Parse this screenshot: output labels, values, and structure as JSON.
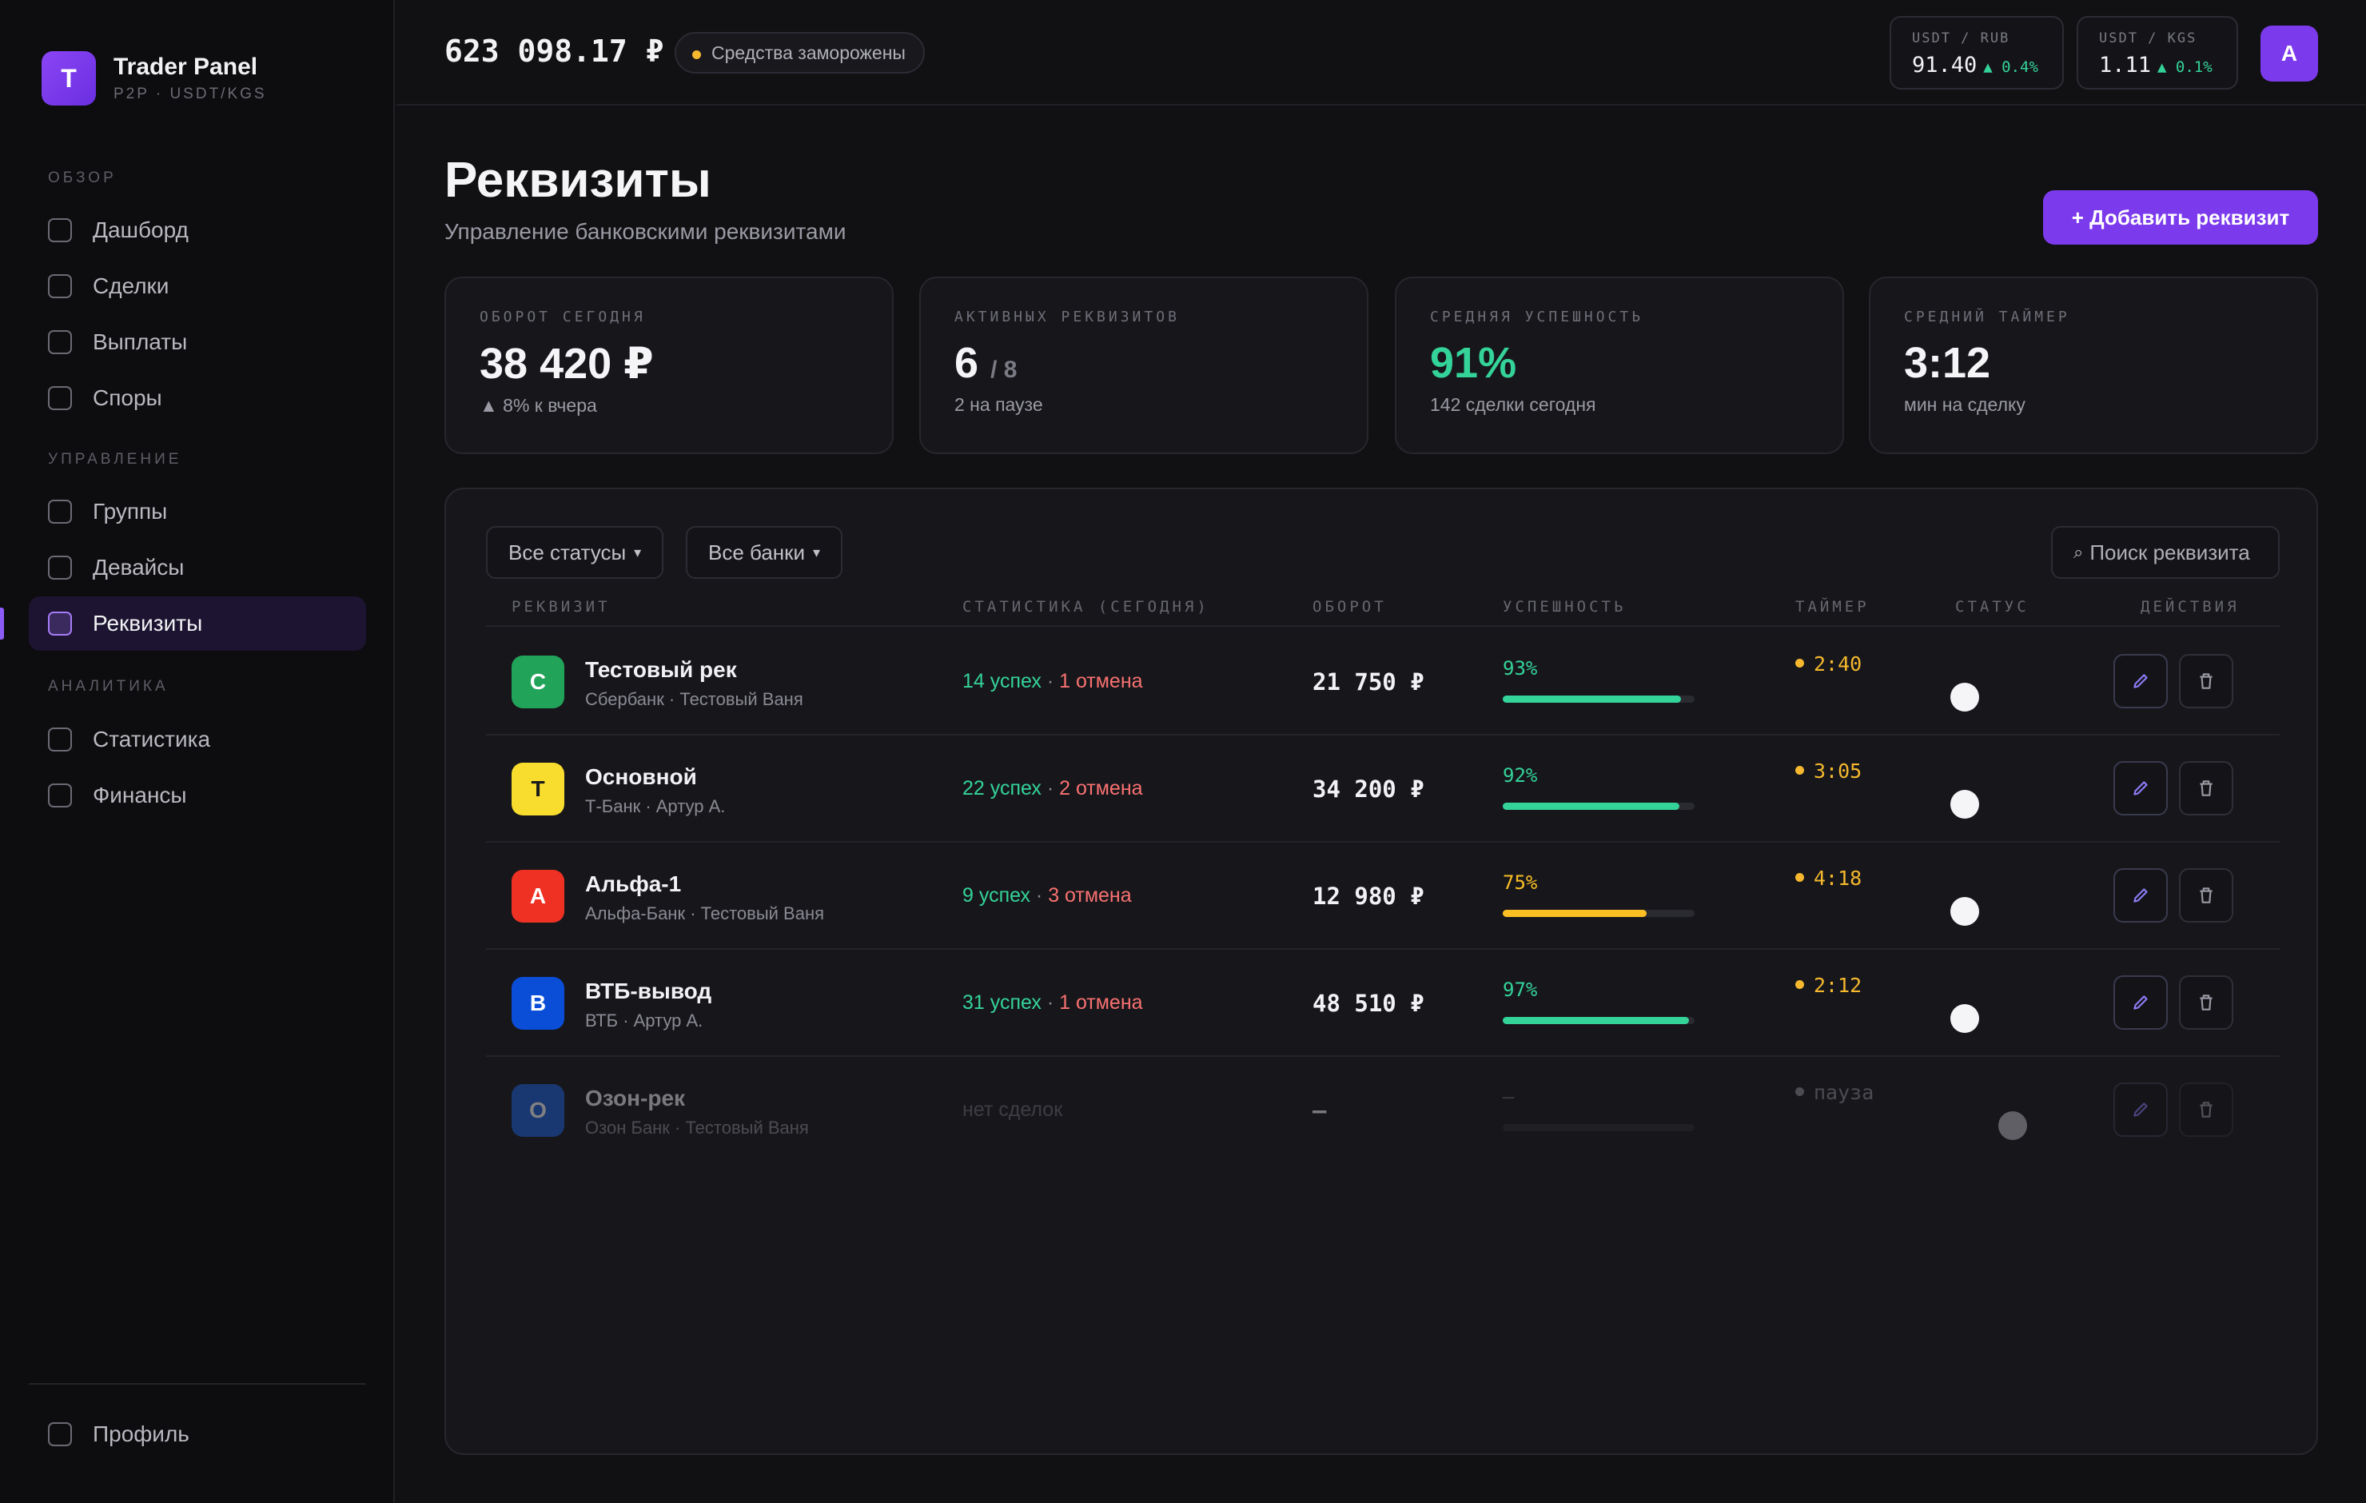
{
  "brand": {
    "logo_letter": "T",
    "title": "Trader Panel",
    "subtitle": "P2P · USDT/KGS"
  },
  "nav": {
    "sections": [
      "ОБЗОР",
      "УПРАВЛЕНИЕ",
      "АНАЛИТИКА"
    ],
    "items": [
      "Дашборд",
      "Сделки",
      "Выплаты",
      "Споры",
      "Группы",
      "Девайсы",
      "Реквизиты",
      "Статистика",
      "Финансы"
    ],
    "active": "Реквизиты",
    "profile": "Профиль"
  },
  "topbar": {
    "balance": "623 098.17 ₽",
    "frozen_label": "Средства заморожены",
    "rates": [
      {
        "pair": "USDT / RUB",
        "value": "91.40",
        "change": "▲ 0.4%"
      },
      {
        "pair": "USDT / KGS",
        "value": "1.11",
        "change": "▲ 0.1%"
      }
    ],
    "avatar_letter": "A"
  },
  "header": {
    "title": "Реквизиты",
    "subtitle": "Управление банковскими реквизитами",
    "add_button": "+ Добавить реквизит"
  },
  "stats": [
    {
      "label": "ОБОРОТ СЕГОДНЯ",
      "value": "38 420 ₽",
      "sub": "▲ 8% к вчера"
    },
    {
      "label": "АКТИВНЫХ РЕКВИЗИТОВ",
      "value": "6",
      "of": "/ 8",
      "sub": "2 на паузе"
    },
    {
      "label": "СРЕДНЯЯ УСПЕШНОСТЬ",
      "value": "91%",
      "sub": "142 сделки сегодня"
    },
    {
      "label": "СРЕДНИЙ ТАЙМЕР",
      "value": "3:12",
      "sub": "мин на сделку"
    }
  ],
  "filters": {
    "status": "Все статусы",
    "banks": "Все банки",
    "search_placeholder": "Поиск реквизита"
  },
  "columns": [
    "РЕКВИЗИТ",
    "СТАТИСТИКА (СЕГОДНЯ)",
    "ОБОРОТ",
    "УСПЕШНОСТЬ",
    "ТАЙМЕР",
    "СТАТУС",
    "ДЕЙСТВИЯ"
  ],
  "rows": [
    {
      "letter": "С",
      "color": "#22a35a",
      "name": "Тестовый рек",
      "sub": "Сбербанк · Тестовый Ваня",
      "ok": "14 успех",
      "sep": " · ",
      "bad": "1 отмена",
      "turnover": "21 750 ₽",
      "success": "93%",
      "success_value": 0.93,
      "success_color": "#34d399",
      "timer": "2:40",
      "timer_color": "#f5b82e",
      "status_on": true
    },
    {
      "letter": "Т",
      "color": "#f8dd2e",
      "letter_color": "#1a1a1a",
      "name": "Основной",
      "sub": "Т-Банк · Артур А.",
      "ok": "22 успех",
      "sep": " · ",
      "bad": "2 отмена",
      "turnover": "34 200 ₽",
      "success": "92%",
      "success_value": 0.92,
      "success_color": "#34d399",
      "timer": "3:05",
      "timer_color": "#f5b82e",
      "status_on": true
    },
    {
      "letter": "А",
      "color": "#ef3124",
      "name": "Альфа-1",
      "sub": "Альфа-Банк · Тестовый Ваня",
      "ok": "9 успех",
      "sep": " · ",
      "bad": "3 отмена",
      "turnover": "12 980 ₽",
      "success": "75%",
      "success_value": 0.75,
      "success_color": "#fbbf24",
      "timer": "4:18",
      "timer_color": "#f5b82e",
      "status_on": true
    },
    {
      "letter": "В",
      "color": "#0a4ed8",
      "name": "ВТБ-вывод",
      "sub": "ВТБ · Артур А.",
      "ok": "31 успех",
      "sep": " · ",
      "bad": "1 отмена",
      "turnover": "48 510 ₽",
      "success": "97%",
      "success_value": 0.97,
      "success_color": "#34d399",
      "timer": "2:12",
      "timer_color": "#f5b82e",
      "status_on": true
    },
    {
      "letter": "О",
      "color": "#1d5ed8",
      "name": "Озон-рек",
      "sub": "Озон Банк · Тестовый Ваня",
      "none": "нет сделок",
      "turnover": "—",
      "success": "—",
      "success_value": 0,
      "success_color": "#34d399",
      "timer": "пауза",
      "timer_color": "#8a8a94",
      "status_on": false
    }
  ]
}
